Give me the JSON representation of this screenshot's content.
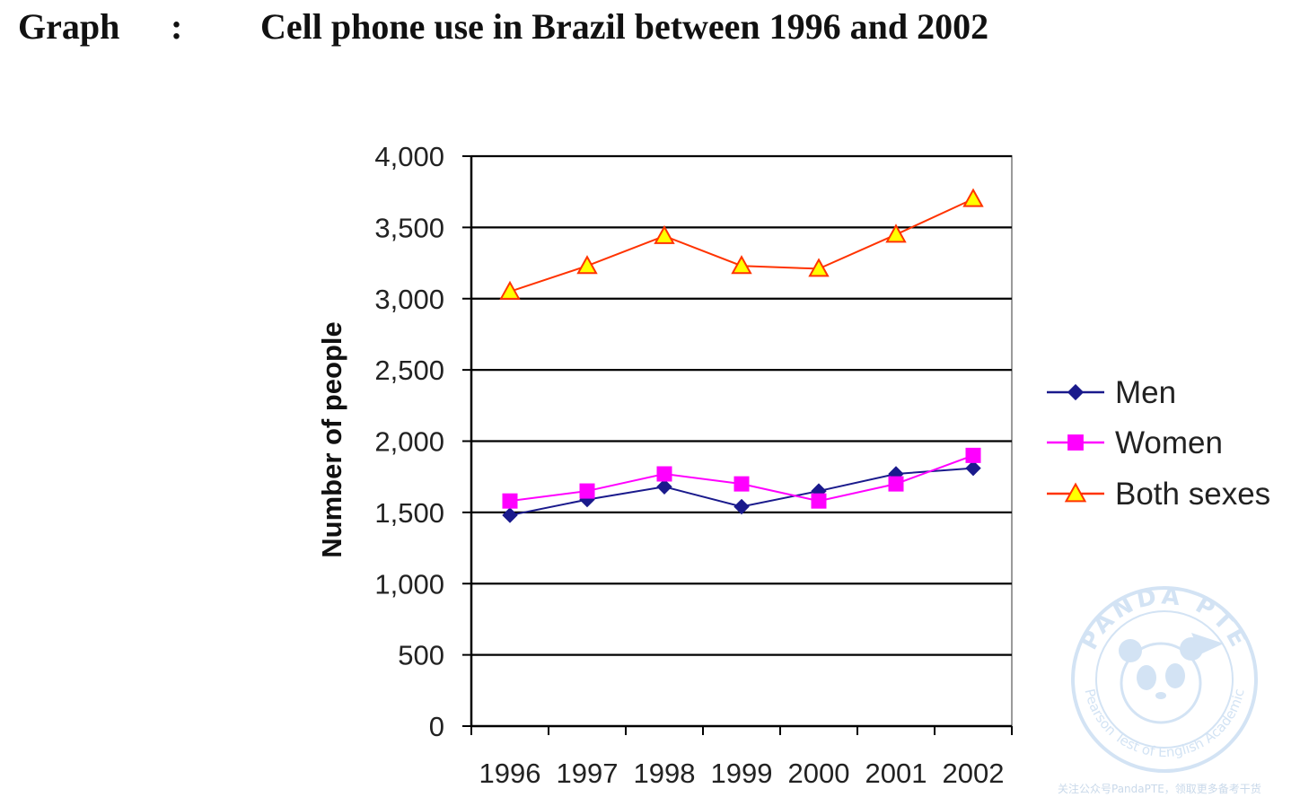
{
  "heading": {
    "label": "Graph",
    "colon": ":",
    "title": "Cell phone use in Brazil between 1996 and 2002"
  },
  "chart_data": {
    "type": "line",
    "title": "Cell phone use in Brazil between 1996 and 2002",
    "xlabel": "",
    "ylabel": "Number of people",
    "x": [
      "1996",
      "1997",
      "1998",
      "1999",
      "2000",
      "2001",
      "2002"
    ],
    "ylim": [
      0,
      4000
    ],
    "yticks": [
      0,
      500,
      1000,
      1500,
      2000,
      2500,
      3000,
      3500,
      4000
    ],
    "ytick_labels": [
      "0",
      "500",
      "1,000",
      "1,500",
      "2,000",
      "2,500",
      "3,000",
      "3,500",
      "4,000"
    ],
    "grid": true,
    "legend_position": "right",
    "series": [
      {
        "name": "Men",
        "values": [
          1480,
          1590,
          1680,
          1540,
          1650,
          1770,
          1810
        ],
        "color": "#1a1a8c",
        "marker": "diamond"
      },
      {
        "name": "Women",
        "values": [
          1580,
          1650,
          1770,
          1700,
          1580,
          1700,
          1900
        ],
        "color": "#ff00ff",
        "marker": "square"
      },
      {
        "name": "Both sexes",
        "values": [
          3050,
          3230,
          3440,
          3230,
          3210,
          3450,
          3700
        ],
        "color": "#ff3300",
        "marker": "triangle",
        "marker_fill": "#ffff00"
      }
    ]
  },
  "watermark": {
    "brand": "PANDA PTE",
    "subtitle": "Pearson Test of English Academic",
    "footer": "关注公众号PandaPTE，领取更多备考干货",
    "color": "#cfe1f3"
  }
}
